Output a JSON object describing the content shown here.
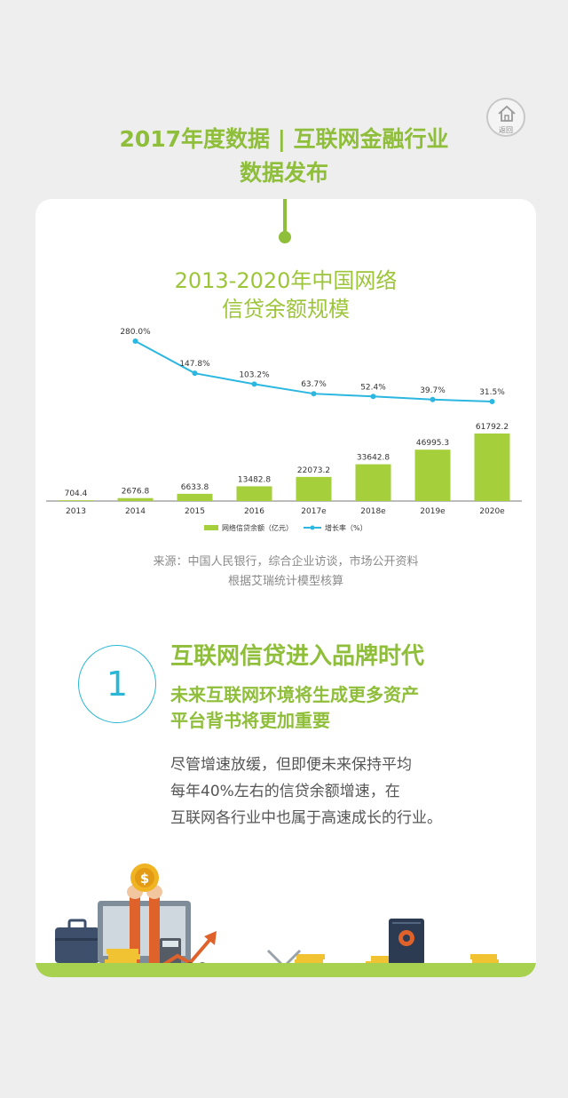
{
  "home_button": {
    "label": "返回",
    "icon": "home-icon"
  },
  "page_title": {
    "line1": "2017年度数据 | 互联网金融行业",
    "line2": "数据发布"
  },
  "chart_title": {
    "line1": "2013-2020年中国网络",
    "line2": "信贷余额规模"
  },
  "chart_data": {
    "type": "bar",
    "categories": [
      "2013",
      "2014",
      "2015",
      "2016",
      "2017e",
      "2018e",
      "2019e",
      "2020e"
    ],
    "series": [
      {
        "name": "网络信贷余额（亿元）",
        "type": "bar",
        "values": [
          704.4,
          2676.8,
          6633.8,
          13482.8,
          22073.2,
          33642.8,
          46995.3,
          61792.2
        ],
        "labels": [
          "704.4",
          "2676.8",
          "6633.8",
          "13482.8",
          "22073.2",
          "33642.8",
          "46995.3",
          "61792.2"
        ],
        "color": "#a6cf3c"
      },
      {
        "name": "增长率（%）",
        "type": "line",
        "values": [
          null,
          280.0,
          147.8,
          103.2,
          63.7,
          52.4,
          39.7,
          31.5
        ],
        "labels": [
          "",
          "280.0%",
          "147.8%",
          "103.2%",
          "63.7%",
          "52.4%",
          "39.7%",
          "31.5%"
        ],
        "color": "#2bb7e0"
      }
    ],
    "legend": [
      "网络信贷余额（亿元）",
      "增长率（%）"
    ],
    "legend_position": "bottom"
  },
  "source": {
    "line1": "来源：中国人民银行，综合企业访谈，市场公开资料",
    "line2": "根据艾瑞统计模型核算"
  },
  "section": {
    "number": "1",
    "title": "互联网信贷进入品牌时代",
    "subtitle_line1": "未来互联网环境将生成更多资产",
    "subtitle_line2": "平台背书将更加重要",
    "body_line1": "尽管增速放缓，但即便未来保持平均",
    "body_line2": "每年40%左右的信贷余额增速，在",
    "body_line3": "互联网各行业中也属于高速成长的行业。"
  },
  "colors": {
    "accent_green": "#8fbe3a",
    "bar_green": "#a6cf3c",
    "line_blue": "#2bb7e0",
    "background": "#eeeeee"
  }
}
